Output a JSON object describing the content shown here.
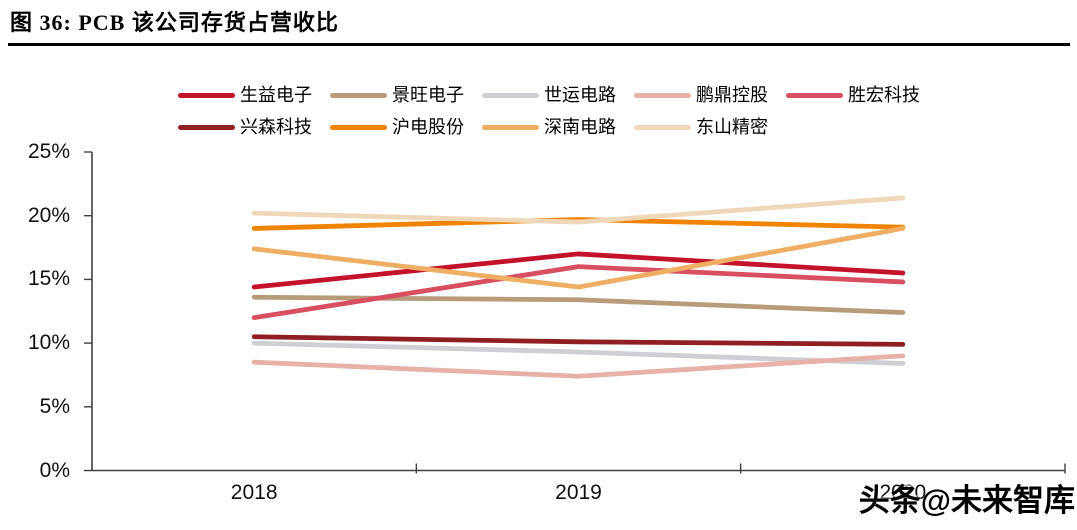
{
  "page": {
    "title": "图 36: PCB 该公司存货占营收比",
    "watermark": "头条@未来智库"
  },
  "chart_data": {
    "type": "line",
    "title": "图 36: PCB 该公司存货占营收比",
    "categories": [
      "2018",
      "2019",
      "2020"
    ],
    "xlabel": "",
    "ylabel": "",
    "unit": "%",
    "ylim": [
      0,
      25
    ],
    "grid": false,
    "legend_position": "top",
    "axis_color": "#404040",
    "y_ticks": [
      {
        "v": 25,
        "label": "25%"
      },
      {
        "v": 20,
        "label": "20%"
      },
      {
        "v": 15,
        "label": "15%"
      },
      {
        "v": 10,
        "label": "10%"
      },
      {
        "v": 5,
        "label": "5%"
      },
      {
        "v": 0,
        "label": "0%"
      }
    ],
    "series": [
      {
        "name": "生益电子",
        "color": "#C5122B",
        "values": [
          14.4,
          17.0,
          15.5
        ]
      },
      {
        "name": "景旺电子",
        "color": "#B89B7B",
        "values": [
          13.6,
          13.4,
          12.4
        ]
      },
      {
        "name": "世运电路",
        "color": "#CDCFD2",
        "values": [
          10.0,
          9.3,
          8.4
        ]
      },
      {
        "name": "鹏鼎控股",
        "color": "#E7B1A8",
        "values": [
          8.5,
          7.4,
          9.0
        ]
      },
      {
        "name": "胜宏科技",
        "color": "#D94F62",
        "values": [
          12.0,
          16.0,
          14.8
        ]
      },
      {
        "name": "兴森科技",
        "color": "#8F1F23",
        "values": [
          10.5,
          10.1,
          9.9
        ]
      },
      {
        "name": "沪电股份",
        "color": "#F08300",
        "values": [
          19.0,
          19.7,
          19.1
        ]
      },
      {
        "name": "深南电路",
        "color": "#F0AD64",
        "values": [
          17.4,
          14.4,
          19.0
        ]
      },
      {
        "name": "东山精密",
        "color": "#EFD7B9",
        "values": [
          20.2,
          19.5,
          21.4
        ]
      }
    ]
  }
}
